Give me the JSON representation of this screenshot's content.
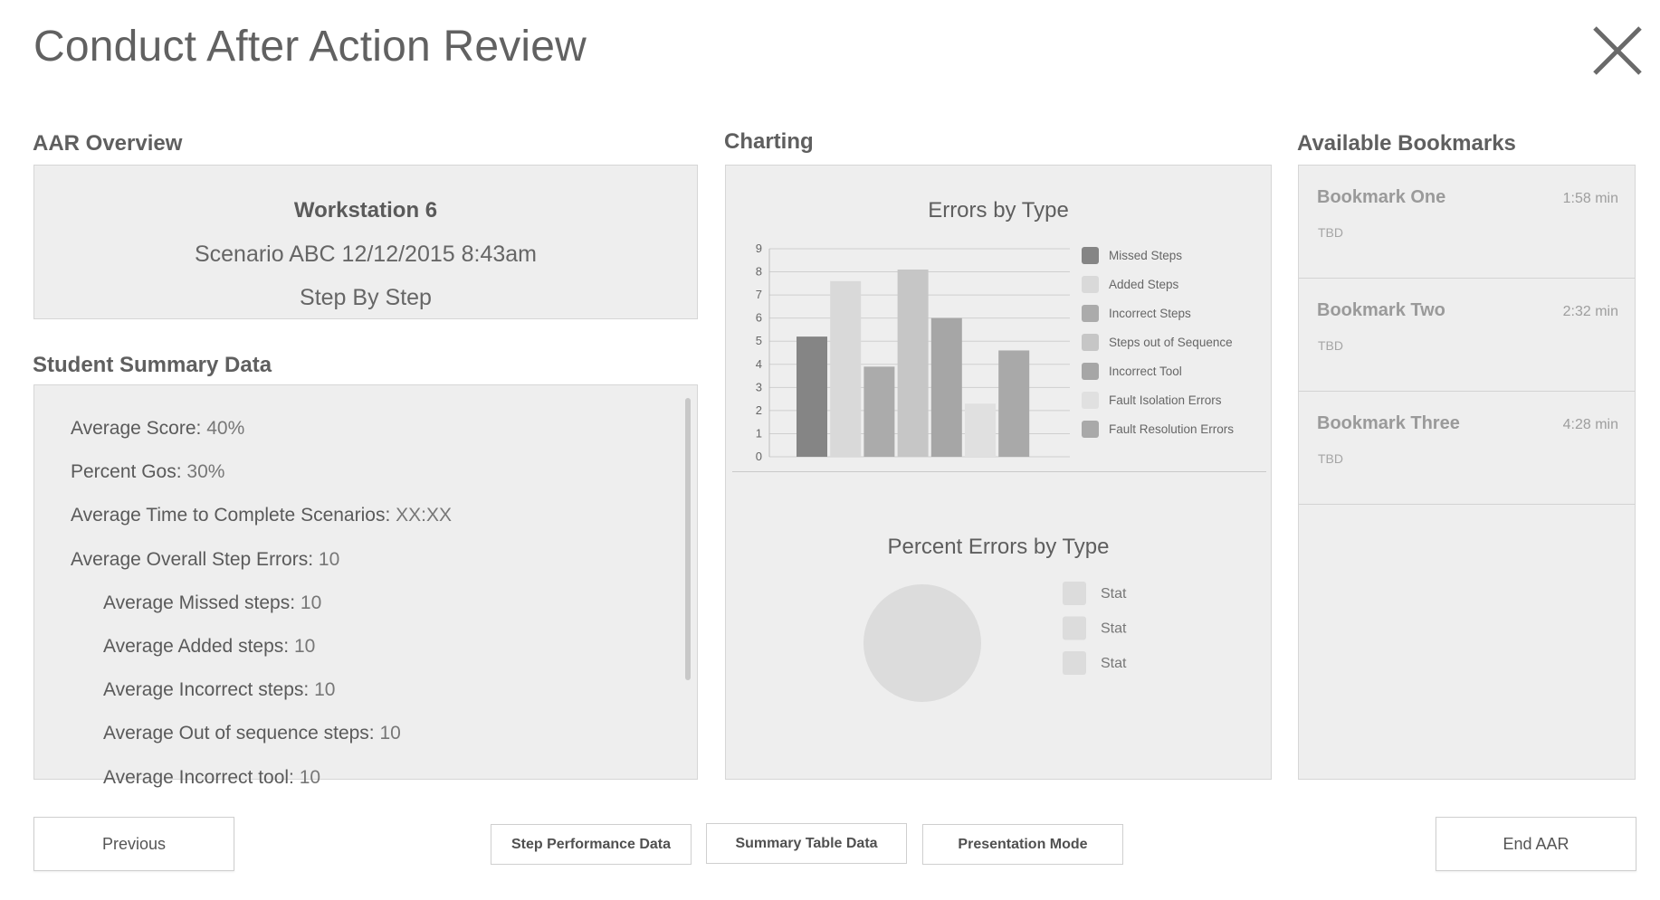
{
  "header": {
    "title": "Conduct After Action Review",
    "close_icon": "close-icon"
  },
  "overview": {
    "heading": "AAR Overview",
    "workstation": "Workstation 6",
    "scenario": "Scenario ABC 12/12/2015 8:43am",
    "mode": "Step By Step"
  },
  "summary": {
    "heading": "Student Summary Data",
    "items": [
      {
        "label": "Average Score:",
        "value": "40%",
        "indent": false
      },
      {
        "label": "Percent Gos:",
        "value": "30%",
        "indent": false
      },
      {
        "label": "Average Time to Complete Scenarios:",
        "value": "XX:XX",
        "indent": false
      },
      {
        "label": "Average Overall Step Errors:",
        "value": "10",
        "indent": false
      },
      {
        "label": "Average Missed steps:",
        "value": "10",
        "indent": true
      },
      {
        "label": "Average Added steps:",
        "value": "10",
        "indent": true
      },
      {
        "label": "Average Incorrect steps:",
        "value": "10",
        "indent": true
      },
      {
        "label": "Average Out of sequence steps:",
        "value": "10",
        "indent": true
      },
      {
        "label": "Average Incorrect tool:",
        "value": "10",
        "indent": true
      }
    ]
  },
  "charting": {
    "heading": "Charting"
  },
  "chart_data": [
    {
      "type": "bar",
      "title": "Errors by Type",
      "ylim": [
        0,
        9
      ],
      "yticks": [
        "0",
        "1",
        "2",
        "3",
        "4",
        "5",
        "6",
        "7",
        "8",
        "9"
      ],
      "grid": true,
      "legend_position": "right",
      "series": [
        {
          "name": "Missed Steps",
          "value": 5.2,
          "color": "#858585"
        },
        {
          "name": "Added Steps",
          "value": 7.6,
          "color": "#d9d9d9"
        },
        {
          "name": "Incorrect Steps",
          "value": 3.9,
          "color": "#ababab"
        },
        {
          "name": "Steps out of Sequence",
          "value": 8.1,
          "color": "#c6c6c6"
        },
        {
          "name": "Incorrect Tool",
          "value": 6.0,
          "color": "#a6a6a6"
        },
        {
          "name": "Fault Isolation Errors",
          "value": 2.3,
          "color": "#e0e0e0"
        },
        {
          "name": "Fault Resolution Errors",
          "value": 4.6,
          "color": "#a9a9a9"
        }
      ]
    },
    {
      "type": "pie",
      "title": "Percent Errors by Type",
      "legend_position": "right",
      "slices": [
        {
          "name": "Stat",
          "value": null,
          "color": "#dcdcdc"
        },
        {
          "name": "Stat",
          "value": null,
          "color": "#dcdcdc"
        },
        {
          "name": "Stat",
          "value": null,
          "color": "#dcdcdc"
        }
      ]
    }
  ],
  "bookmarks": {
    "heading": "Available Bookmarks",
    "items": [
      {
        "name": "Bookmark One",
        "time": "1:58 min",
        "desc": "TBD"
      },
      {
        "name": "Bookmark Two",
        "time": "2:32 min",
        "desc": "TBD"
      },
      {
        "name": "Bookmark Three",
        "time": "4:28 min",
        "desc": "TBD"
      }
    ]
  },
  "footer": {
    "previous_label": "Previous",
    "step_performance_label": "Step Performance Data",
    "summary_table_label": "Summary Table Data",
    "presentation_label": "Presentation Mode",
    "end_label": "End AAR"
  }
}
